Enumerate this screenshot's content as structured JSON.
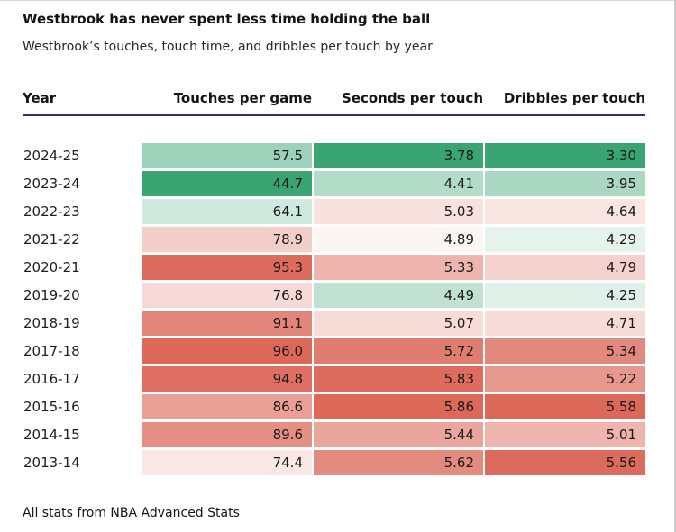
{
  "colors": {
    "header_rule": "#312f72",
    "scale_low_green": "#3ba473",
    "scale_mid_white": "#ffffff",
    "scale_high_red": "#dc685a",
    "text": "#1a1a1a"
  },
  "chart_data": {
    "type": "heatmap",
    "title": "Westbrook has never spent less time holding the ball",
    "subtitle": "Westbrook’s touches, touch time, and dribbles per touch by year",
    "columns": [
      "Year",
      "Touches per game",
      "Seconds per touch",
      "Dribbles per touch"
    ],
    "years": [
      "2024-25",
      "2023-24",
      "2022-23",
      "2021-22",
      "2020-21",
      "2019-20",
      "2018-19",
      "2017-18",
      "2016-17",
      "2015-16",
      "2014-15",
      "2013-14"
    ],
    "series": [
      {
        "name": "Touches per game",
        "decimals": 1,
        "values": [
          57.5,
          44.7,
          64.1,
          78.9,
          95.3,
          76.8,
          91.1,
          96.0,
          94.8,
          86.6,
          89.6,
          74.4
        ]
      },
      {
        "name": "Seconds per touch",
        "decimals": 2,
        "values": [
          3.78,
          4.41,
          5.03,
          4.89,
          5.33,
          4.49,
          5.07,
          5.72,
          5.83,
          5.86,
          5.44,
          5.62
        ]
      },
      {
        "name": "Dribbles per touch",
        "decimals": 2,
        "values": [
          3.3,
          3.95,
          4.64,
          4.29,
          4.79,
          4.25,
          4.71,
          5.34,
          5.22,
          5.58,
          5.01,
          5.56
        ]
      }
    ],
    "color_scale": {
      "low": "#3ba473",
      "mid": "#ffffff",
      "high": "#dc685a",
      "mapping": "diverging per column: green at column min, white at (min+max)/2, red at column max"
    },
    "legend_position": "none",
    "source": "All stats from NBA Advanced Stats"
  }
}
